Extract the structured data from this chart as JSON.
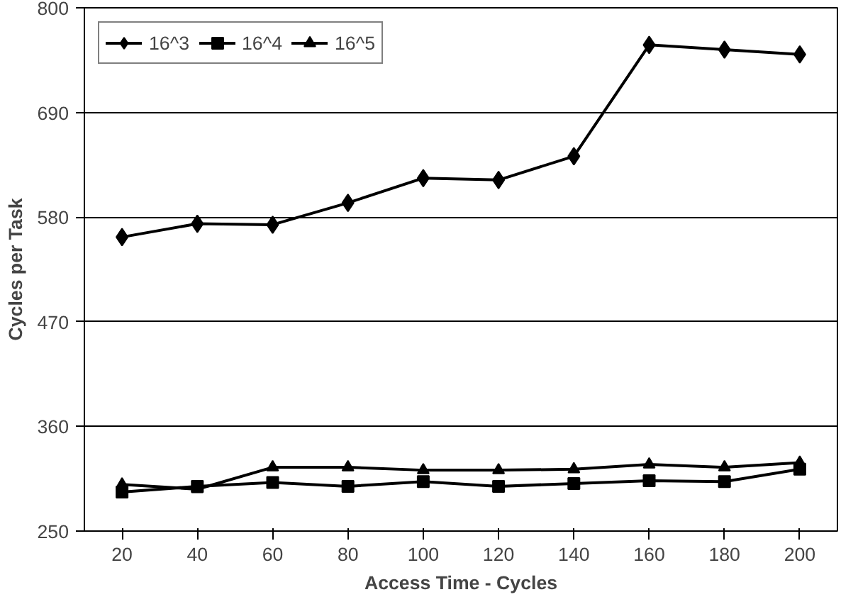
{
  "chart_data": {
    "type": "line",
    "xlabel": "Access Time - Cycles",
    "ylabel": "Cycles per Task",
    "categories": [
      "20",
      "40",
      "60",
      "80",
      "100",
      "120",
      "140",
      "160",
      "180",
      "200"
    ],
    "ylim": [
      250,
      800
    ],
    "yticks": [
      250,
      360,
      470,
      580,
      690,
      800
    ],
    "grid": "y",
    "legend": "top left",
    "line_style": "solid",
    "series": [
      {
        "name": "16^3",
        "color": "#000000",
        "marker": "diamond",
        "values": [
          559,
          573,
          572,
          595,
          621,
          619,
          644,
          761,
          756,
          751
        ]
      },
      {
        "name": "16^4",
        "color": "#000000",
        "marker": "square",
        "values": [
          291,
          297,
          301,
          297,
          302,
          297,
          300,
          303,
          302,
          315
        ]
      },
      {
        "name": "16^5",
        "color": "#000000",
        "marker": "triangle",
        "values": [
          299,
          294,
          317,
          317,
          314,
          314,
          315,
          320,
          317,
          322
        ]
      }
    ]
  }
}
